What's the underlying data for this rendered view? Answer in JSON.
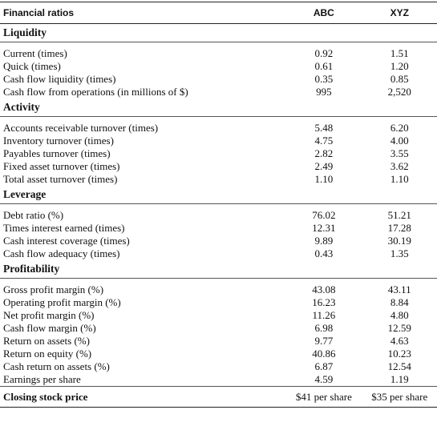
{
  "header": {
    "label": "Financial ratios",
    "col_abc": "ABC",
    "col_xyz": "XYZ"
  },
  "sections": [
    {
      "title": "Liquidity",
      "rows": [
        {
          "label": "Current (times)",
          "abc": "0.92",
          "xyz": "1.51"
        },
        {
          "label": "Quick (times)",
          "abc": "0.61",
          "xyz": "1.20"
        },
        {
          "label": "Cash flow liquidity (times)",
          "abc": "0.35",
          "xyz": "0.85"
        },
        {
          "label": "Cash flow from operations (in millions of $)",
          "abc": "995",
          "xyz": "2,520"
        }
      ]
    },
    {
      "title": "Activity",
      "rows": [
        {
          "label": "Accounts receivable turnover (times)",
          "abc": "5.48",
          "xyz": "6.20"
        },
        {
          "label": "Inventory turnover (times)",
          "abc": "4.75",
          "xyz": "4.00"
        },
        {
          "label": "Payables turnover (times)",
          "abc": "2.82",
          "xyz": "3.55"
        },
        {
          "label": "Fixed asset turnover (times)",
          "abc": "2.49",
          "xyz": "3.62"
        },
        {
          "label": "Total asset turnover (times)",
          "abc": "1.10",
          "xyz": "1.10"
        }
      ]
    },
    {
      "title": "Leverage",
      "rows": [
        {
          "label": "Debt ratio (%)",
          "abc": "76.02",
          "xyz": "51.21"
        },
        {
          "label": "Times interest earned (times)",
          "abc": "12.31",
          "xyz": "17.28"
        },
        {
          "label": "Cash interest coverage (times)",
          "abc": "9.89",
          "xyz": "30.19"
        },
        {
          "label": "Cash flow adequacy (times)",
          "abc": "0.43",
          "xyz": "1.35"
        }
      ]
    },
    {
      "title": "Profitability",
      "rows": [
        {
          "label": "Gross profit margin (%)",
          "abc": "43.08",
          "xyz": "43.11"
        },
        {
          "label": "Operating profit margin (%)",
          "abc": "16.23",
          "xyz": "8.84"
        },
        {
          "label": "Net profit margin (%)",
          "abc": "11.26",
          "xyz": "4.80"
        },
        {
          "label": "Cash flow margin (%)",
          "abc": "6.98",
          "xyz": "12.59"
        },
        {
          "label": "Return on assets (%)",
          "abc": "9.77",
          "xyz": "4.63"
        },
        {
          "label": "Return on equity (%)",
          "abc": "40.86",
          "xyz": "10.23"
        },
        {
          "label": "Cash return on assets (%)",
          "abc": "6.87",
          "xyz": "12.54"
        },
        {
          "label": "Earnings per share",
          "abc": "4.59",
          "xyz": "1.19"
        }
      ]
    }
  ],
  "footer": {
    "label": "Closing stock price",
    "abc": "$41 per share",
    "xyz": "$35 per share"
  }
}
